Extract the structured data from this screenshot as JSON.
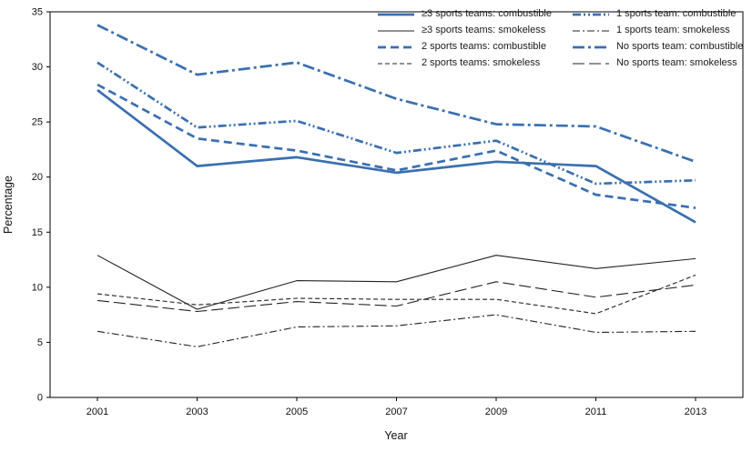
{
  "chart_data": {
    "type": "line",
    "title": "",
    "xlabel": "Year",
    "ylabel": "Percentage",
    "x": [
      2001,
      2003,
      2005,
      2007,
      2009,
      2011,
      2013
    ],
    "ylim": [
      0,
      35
    ],
    "yticks": [
      0,
      5,
      10,
      15,
      20,
      25,
      30,
      35
    ],
    "grid": false,
    "legend_position": "top-right",
    "accent_colors": {
      "combustible_blue": "#3a6fb0",
      "smokeless_black": "#222222"
    },
    "series": [
      {
        "name": "≥3 sports teams: combustible",
        "color": "#3a6fb0",
        "width": 2.7,
        "dash": "",
        "values": [
          27.9,
          21.0,
          21.8,
          20.4,
          21.4,
          21.0,
          15.9
        ]
      },
      {
        "name": "≥3 sports teams: smokeless",
        "color": "#222222",
        "width": 1.1,
        "dash": "",
        "values": [
          12.9,
          8.0,
          10.6,
          10.5,
          12.9,
          11.7,
          12.6
        ]
      },
      {
        "name": "2 sports teams: combustible",
        "color": "#3a6fb0",
        "width": 2.7,
        "dash": "9 5",
        "values": [
          28.4,
          23.5,
          22.4,
          20.6,
          22.4,
          18.4,
          17.2
        ]
      },
      {
        "name": "2 sports teams: smokeless",
        "color": "#222222",
        "width": 1.1,
        "dash": "5 3",
        "values": [
          9.4,
          8.4,
          9.0,
          8.9,
          8.9,
          7.6,
          11.1
        ]
      },
      {
        "name": "1 sports team: combustible",
        "color": "#3a6fb0",
        "width": 2.7,
        "dash": "9 3 2 3 2 3",
        "values": [
          30.4,
          24.5,
          25.1,
          22.2,
          23.3,
          19.4,
          19.7
        ]
      },
      {
        "name": "1 sports team: smokeless",
        "color": "#222222",
        "width": 1.1,
        "dash": "8 3 2 3",
        "values": [
          6.0,
          4.6,
          6.4,
          6.5,
          7.5,
          5.9,
          6.0
        ]
      },
      {
        "name": "No sports team: combustible",
        "color": "#3a6fb0",
        "width": 2.7,
        "dash": "13 4 3 4",
        "values": [
          33.8,
          29.3,
          30.4,
          27.1,
          24.8,
          24.6,
          21.4
        ]
      },
      {
        "name": "No sports team: smokeless",
        "color": "#222222",
        "width": 1.1,
        "dash": "13 5",
        "values": [
          8.8,
          7.8,
          8.7,
          8.3,
          10.5,
          9.1,
          10.2
        ]
      }
    ],
    "legend_columns": [
      [
        "≥3 sports teams: combustible",
        "≥3 sports teams: smokeless",
        "2 sports teams: combustible",
        "2 sports teams: smokeless"
      ],
      [
        "1 sports team: combustible",
        "1 sports team: smokeless",
        "No sports team: combustible",
        "No sports team: smokeless"
      ]
    ]
  }
}
